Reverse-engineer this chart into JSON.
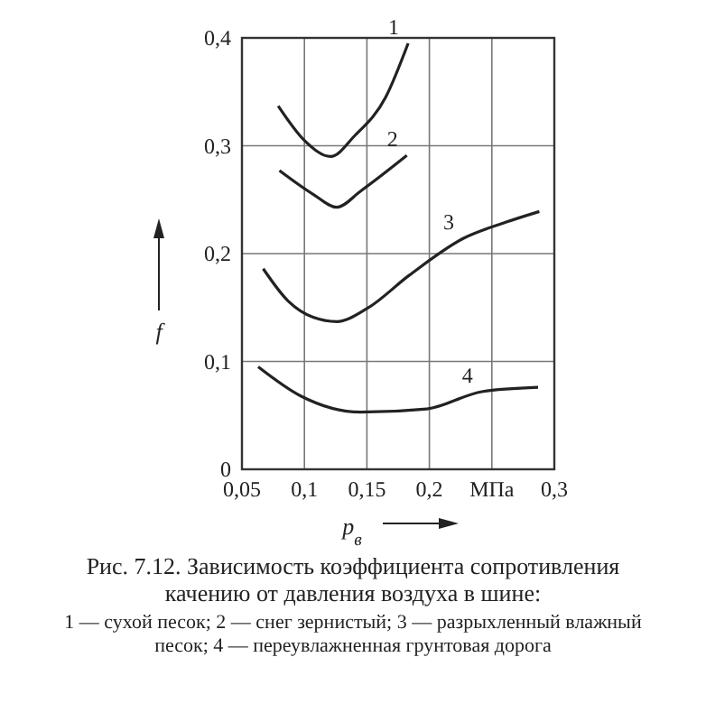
{
  "chart_data": {
    "type": "line",
    "xlabel": "p$_{в}$",
    "ylabel": "f",
    "xlim": [
      0.05,
      0.3
    ],
    "ylim": [
      0,
      0.4
    ],
    "xticks": [
      {
        "value": 0.05,
        "label": "0,05"
      },
      {
        "value": 0.1,
        "label": "0,1"
      },
      {
        "value": 0.15,
        "label": "0,15"
      },
      {
        "value": 0.2,
        "label": "0,2"
      },
      {
        "value": 0.25,
        "label": "МПа"
      },
      {
        "value": 0.3,
        "label": "0,3"
      }
    ],
    "yticks": [
      {
        "value": 0,
        "label": "0"
      },
      {
        "value": 0.1,
        "label": "0,1"
      },
      {
        "value": 0.2,
        "label": "0,2"
      },
      {
        "value": 0.3,
        "label": "0,3"
      },
      {
        "value": 0.4,
        "label": "0,4"
      }
    ],
    "grid": true,
    "marker": "none",
    "line_style": "solid",
    "series": [
      {
        "color": "#222222",
        "x": [
          0.079,
          0.1,
          0.121,
          0.14,
          0.165,
          0.183
        ],
        "values": [
          0.337,
          0.305,
          0.29,
          0.309,
          0.345,
          0.395
        ]
      },
      {
        "color": "#222222",
        "x": [
          0.08,
          0.107,
          0.126,
          0.145,
          0.182
        ],
        "values": [
          0.277,
          0.255,
          0.243,
          0.258,
          0.291
        ]
      },
      {
        "color": "#222222",
        "x": [
          0.067,
          0.087,
          0.107,
          0.126,
          0.15,
          0.184,
          0.227,
          0.261,
          0.288
        ],
        "values": [
          0.186,
          0.156,
          0.141,
          0.137,
          0.149,
          0.18,
          0.214,
          0.229,
          0.239
        ]
      },
      {
        "color": "#222222",
        "x": [
          0.063,
          0.097,
          0.145,
          0.198,
          0.242,
          0.287
        ],
        "values": [
          0.095,
          0.068,
          0.053,
          0.056,
          0.072,
          0.076
        ]
      }
    ],
    "annotations": [
      {
        "text": "1",
        "x": 0.183,
        "y": 0.395
      },
      {
        "text": "2",
        "x": 0.182,
        "y": 0.291
      },
      {
        "text": "3",
        "x": 0.227,
        "y": 0.214
      },
      {
        "text": "4",
        "x": 0.242,
        "y": 0.072
      },
      "Рис. 7.12. Зависимость коэффициента сопротивления качению от давления воздуха в шине:",
      "1 — сухой песок; 2 — снег зернистый; 3 — разрыхленный влажный песок; 4 — переувлажненная грунтовая дорога"
    ]
  }
}
